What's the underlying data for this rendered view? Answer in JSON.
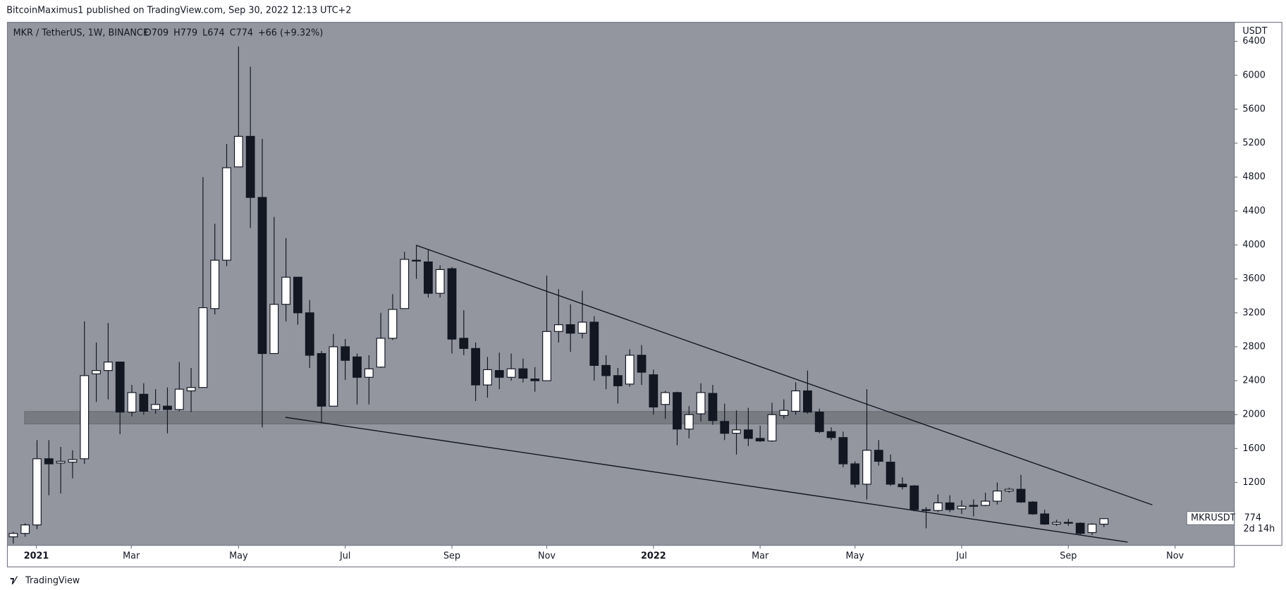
{
  "header": {
    "published": "BitcoinMaximus1 published on TradingView.com, Sep 30, 2022 12:13 UTC+2",
    "footer": "TradingView"
  },
  "chart_data": {
    "type": "candlestick",
    "title": "MKR / TetherUS, 1W, BINANCE",
    "legend_values": [
      "O709",
      "H779",
      "L674",
      "C774",
      "+66 (+9.32%)"
    ],
    "y_unit": "USDT",
    "symbol": "MKRUSDT",
    "countdown": "2d 14h",
    "up_color": "#ffffff",
    "down_color": "#131722",
    "background": "#93969f",
    "open": [
      560,
      600,
      700,
      1480,
      1430,
      1440,
      1480,
      2480,
      2520,
      2620,
      2030,
      2240,
      2060,
      2100,
      2060,
      2280,
      2320,
      3250,
      3820,
      4920,
      5280,
      4560,
      2720,
      3300,
      3620,
      3200,
      2720,
      2100,
      2800,
      2680,
      2440,
      2560,
      2900,
      3250,
      3820,
      3800,
      3430,
      3720,
      2900,
      2780,
      2350,
      2520,
      2440,
      2540,
      2420,
      2400,
      2980,
      3060,
      2960,
      3090,
      2580,
      2460,
      2360,
      2700,
      2470,
      2120,
      2260,
      1830,
      2010,
      2250,
      1920,
      1780,
      1820,
      1720,
      1690,
      1990,
      2040,
      2280,
      2030,
      1800,
      1730,
      1420,
      1180,
      1580,
      1440,
      1180,
      1160,
      880,
      870,
      960,
      890,
      920,
      930,
      980,
      1100,
      1120,
      970,
      830,
      710,
      730,
      720,
      610,
      709
    ],
    "high": [
      620,
      720,
      1700,
      1700,
      1620,
      1580,
      3100,
      2850,
      3080,
      2620,
      2350,
      2370,
      2300,
      2320,
      2620,
      2550,
      4800,
      4250,
      5190,
      6340,
      6100,
      5250,
      4330,
      4080,
      3620,
      3350,
      2750,
      2950,
      2890,
      2720,
      2700,
      3200,
      3420,
      3920,
      4000,
      3950,
      3760,
      3740,
      3230,
      2850,
      2680,
      2730,
      2720,
      2660,
      2560,
      3640,
      3480,
      3300,
      3460,
      3160,
      2700,
      2550,
      2770,
      2820,
      2530,
      2280,
      2270,
      2100,
      2370,
      2350,
      2130,
      2050,
      2080,
      1870,
      2140,
      2180,
      2380,
      2520,
      2070,
      1850,
      1800,
      1450,
      2300,
      1700,
      1530,
      1260,
      1170,
      910,
      1060,
      1050,
      990,
      1000,
      1080,
      1200,
      1140,
      1290,
      980,
      880,
      760,
      770,
      730,
      720,
      779
    ],
    "low": [
      480,
      560,
      650,
      1050,
      1070,
      1250,
      1420,
      2150,
      2180,
      1770,
      1980,
      2000,
      2010,
      1780,
      2040,
      2030,
      2320,
      3180,
      3750,
      4920,
      4200,
      1850,
      2720,
      3100,
      3060,
      2550,
      1900,
      2100,
      2410,
      2120,
      2120,
      2550,
      2880,
      3250,
      3600,
      3380,
      3380,
      2720,
      2700,
      2160,
      2200,
      2300,
      2400,
      2380,
      2270,
      2400,
      2850,
      2740,
      2900,
      2400,
      2300,
      2130,
      2330,
      2350,
      2000,
      1950,
      1640,
      1720,
      1920,
      1880,
      1700,
      1530,
      1630,
      1680,
      1680,
      1950,
      2000,
      2010,
      1780,
      1700,
      1380,
      1140,
      1000,
      1400,
      1160,
      1120,
      860,
      660,
      850,
      850,
      830,
      800,
      920,
      940,
      1080,
      960,
      820,
      700,
      690,
      690,
      580,
      580,
      674
    ],
    "close": [
      600,
      700,
      1480,
      1420,
      1450,
      1470,
      2460,
      2520,
      2620,
      2030,
      2260,
      2040,
      2120,
      2060,
      2300,
      2320,
      3260,
      3820,
      4910,
      5280,
      4560,
      2720,
      3300,
      3620,
      3200,
      2700,
      2100,
      2800,
      2640,
      2440,
      2540,
      2900,
      3240,
      3830,
      3810,
      3430,
      3710,
      2890,
      2780,
      2350,
      2530,
      2440,
      2540,
      2430,
      2400,
      2980,
      3060,
      2960,
      3090,
      2580,
      2460,
      2340,
      2700,
      2500,
      2090,
      2260,
      1830,
      2000,
      2260,
      1930,
      1780,
      1820,
      1720,
      1690,
      2000,
      2050,
      2280,
      2030,
      1800,
      1730,
      1420,
      1180,
      1580,
      1450,
      1180,
      1150,
      880,
      870,
      960,
      880,
      920,
      930,
      980,
      1100,
      1120,
      970,
      830,
      710,
      730,
      720,
      600,
      709,
      774
    ],
    "xlim": [
      -0.5,
      103
    ],
    "xticks": [
      {
        "value": 1.94,
        "label": "2021"
      },
      {
        "value": 9.95,
        "label": "Mar"
      },
      {
        "value": 19,
        "label": "May"
      },
      {
        "value": 28,
        "label": "Jul"
      },
      {
        "value": 37,
        "label": "Sep"
      },
      {
        "value": 45,
        "label": "Nov"
      },
      {
        "value": 54,
        "label": "2022"
      },
      {
        "value": 63,
        "label": "Mar"
      },
      {
        "value": 71,
        "label": "May"
      },
      {
        "value": 80,
        "label": "Jul"
      },
      {
        "value": 89,
        "label": "Sep"
      },
      {
        "value": 98,
        "label": "Nov"
      }
    ],
    "ylim": [
      459,
      6624
    ],
    "yticks": [
      1200,
      1600,
      2000,
      2400,
      2800,
      3200,
      3600,
      4000,
      4400,
      4800,
      5200,
      5600,
      6000,
      6400
    ]
  }
}
